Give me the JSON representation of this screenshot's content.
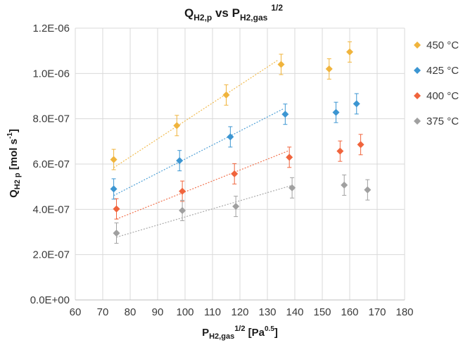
{
  "chart_data": {
    "type": "scatter",
    "title": {
      "base": "Q",
      "base_sub": "H2,p",
      "middle": " vs P",
      "sub": "H2,gas",
      "sup": "1/2"
    },
    "xlabel": {
      "base": "P",
      "sub": "H2,gas",
      "sup": "1/2",
      "unit": " [Pa",
      "unit_sup": "0.5",
      "unit_end": "]"
    },
    "ylabel": {
      "base": "Q",
      "sub": "H2 p",
      "unit": "  [mol s",
      "unit_sup": "-1",
      "unit_end": "]"
    },
    "xlim": [
      60,
      180
    ],
    "ylim": [
      0,
      1.2e-06
    ],
    "x_ticks": [
      "60",
      "70",
      "80",
      "90",
      "100",
      "110",
      "120",
      "130",
      "140",
      "150",
      "160",
      "170",
      "180"
    ],
    "y_ticks": [
      "0.0E+00",
      "2.0E-07",
      "4.0E-07",
      "6.0E-07",
      "8.0E-07",
      "1.0E-06",
      "1.2E-06"
    ],
    "grid": true,
    "legend_position": "right",
    "series": [
      {
        "name": "450 °C",
        "color": "#F0B43C",
        "x": [
          74,
          97,
          115,
          135,
          152.5,
          160
        ],
        "y": [
          6.2e-07,
          7.7e-07,
          9.05e-07,
          1.04e-06,
          1.02e-06,
          1.095e-06
        ],
        "error": [
          4.5e-08,
          4.5e-08,
          4.5e-08,
          4.5e-08,
          4.5e-08,
          4.5e-08
        ],
        "trend": [
          [
            74,
            5.84e-07
          ],
          [
            134,
            1.06e-06
          ]
        ]
      },
      {
        "name": "425 °C",
        "color": "#3C96D2",
        "x": [
          74,
          98,
          116.5,
          136.5,
          155,
          162.5
        ],
        "y": [
          4.9e-07,
          6.15e-07,
          7.2e-07,
          8.2e-07,
          8.28e-07,
          8.66e-07
        ],
        "error": [
          4.5e-08,
          4.5e-08,
          4.5e-08,
          4.5e-08,
          4.5e-08,
          4.5e-08
        ],
        "trend": [
          [
            74,
            4.61e-07
          ],
          [
            136,
            8.45e-07
          ]
        ]
      },
      {
        "name": "400 °C",
        "color": "#F0643C",
        "x": [
          75,
          99,
          118,
          138,
          156.5,
          164
        ],
        "y": [
          4.02e-07,
          4.8e-07,
          5.57e-07,
          6.3e-07,
          6.57e-07,
          6.86e-07
        ],
        "error": [
          4.5e-08,
          4.5e-08,
          4.5e-08,
          4.5e-08,
          4.5e-08,
          4.5e-08
        ],
        "trend": [
          [
            75,
            3.57e-07
          ],
          [
            138,
            6.6e-07
          ]
        ]
      },
      {
        "name": "375 °C",
        "color": "#A0A0A0",
        "x": [
          75,
          99,
          118.5,
          139,
          158,
          166.5
        ],
        "y": [
          2.95e-07,
          3.95e-07,
          4.13e-07,
          4.95e-07,
          5.07e-07,
          4.86e-07
        ],
        "error": [
          4.5e-08,
          4.5e-08,
          4.5e-08,
          4.5e-08,
          4.5e-08,
          4.5e-08
        ],
        "trend": [
          [
            75,
            2.77e-07
          ],
          [
            139,
            5.06e-07
          ]
        ]
      }
    ]
  }
}
